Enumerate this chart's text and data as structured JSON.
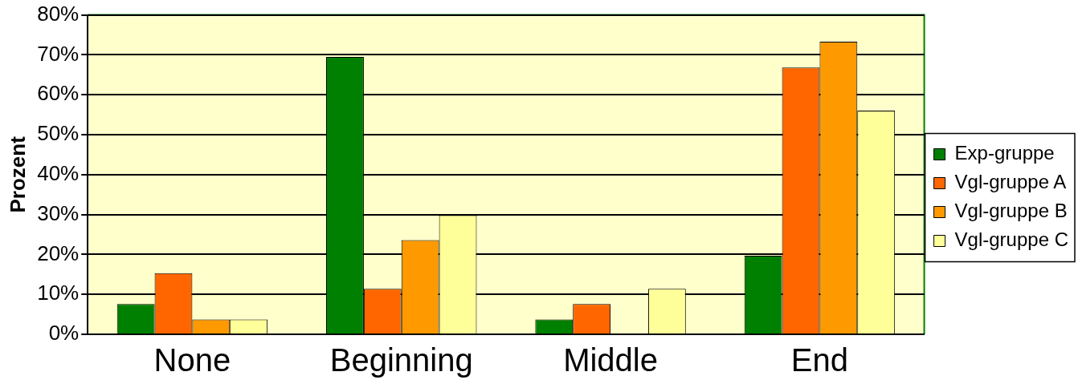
{
  "chart_data": {
    "type": "bar",
    "ylabel": "Prozent",
    "categories": [
      "None",
      "Beginning",
      "Middle",
      "End"
    ],
    "series": [
      {
        "name": "Exp-gruppe",
        "color": "#008000",
        "values": [
          7.6,
          69.5,
          3.7,
          19.7
        ]
      },
      {
        "name": "Vgl-gruppe A",
        "color": "#ff6600",
        "values": [
          15.3,
          11.4,
          7.6,
          66.8
        ]
      },
      {
        "name": "Vgl-gruppe B",
        "color": "#ff9900",
        "values": [
          3.7,
          23.6,
          0,
          73.3
        ]
      },
      {
        "name": "Vgl-gruppe C",
        "color": "#ffff99",
        "values": [
          3.7,
          29.8,
          11.4,
          56.0
        ]
      }
    ],
    "ylim": [
      0,
      80
    ],
    "yticks": [
      {
        "value": 0,
        "label": "0%"
      },
      {
        "value": 10,
        "label": "10%"
      },
      {
        "value": 20,
        "label": "20%"
      },
      {
        "value": 30,
        "label": "30%"
      },
      {
        "value": 40,
        "label": "40%"
      },
      {
        "value": 50,
        "label": "50%"
      },
      {
        "value": 60,
        "label": "60%"
      },
      {
        "value": 70,
        "label": "70%"
      },
      {
        "value": 80,
        "label": "80%"
      }
    ],
    "grid": "y",
    "legend": "right"
  }
}
